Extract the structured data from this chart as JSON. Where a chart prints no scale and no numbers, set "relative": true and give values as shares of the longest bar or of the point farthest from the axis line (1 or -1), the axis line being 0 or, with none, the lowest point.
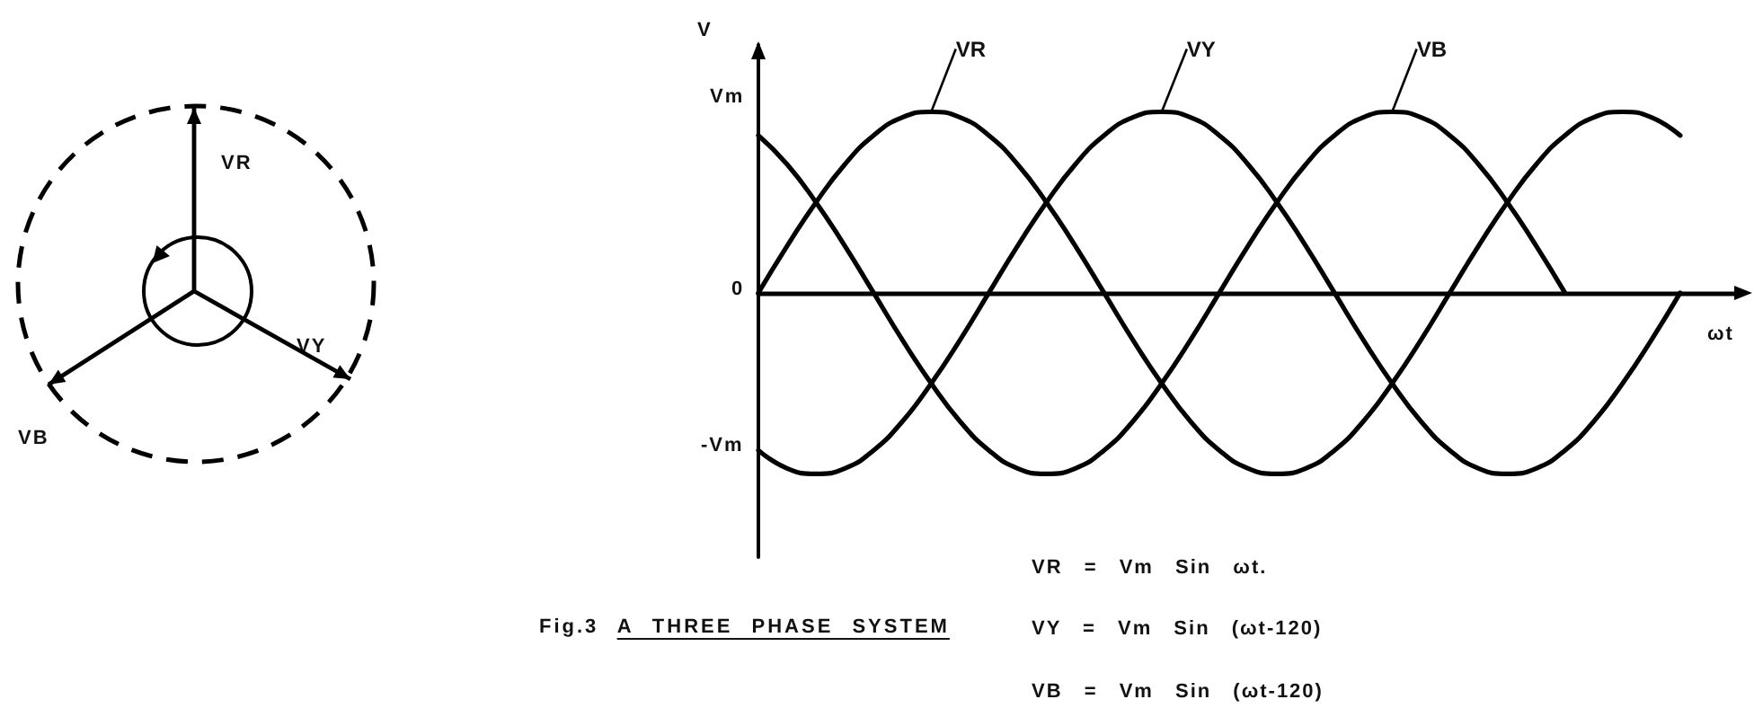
{
  "chart_data": {
    "type": "line",
    "title": "Fig.3 A THREE PHASE SYSTEM",
    "xlabel": "ωt",
    "ylabel": "V",
    "relative": true,
    "categories": [
      null,
      null,
      null,
      null,
      null,
      null,
      null,
      null,
      null,
      null,
      null,
      null,
      null,
      null,
      null,
      null,
      null,
      null,
      null,
      null,
      null,
      null,
      null,
      null,
      null,
      null,
      null,
      null,
      null,
      null,
      null,
      null,
      null,
      null,
      null
    ],
    "series": [
      {
        "name": "VR",
        "color": "#000000",
        "values": [
          0,
          0.26,
          0.5,
          0.71,
          0.87,
          0.97,
          1,
          0.97,
          0.87,
          0.71,
          0.5,
          0.26,
          0,
          -0.26,
          -0.5,
          -0.71,
          -0.87,
          -0.97,
          -1,
          -0.97,
          -0.87,
          -0.71,
          -0.5,
          -0.26,
          0,
          0.26,
          0.5,
          0.71,
          0.87,
          0.97,
          1,
          0.97,
          0.87,
          null,
          null
        ]
      },
      {
        "name": "VY",
        "color": "#000000",
        "values": [
          -0.87,
          -0.97,
          -1,
          -0.97,
          -0.87,
          -0.71,
          -0.5,
          -0.26,
          0,
          0.26,
          0.5,
          0.71,
          0.87,
          0.97,
          1,
          0.97,
          0.87,
          0.71,
          0.5,
          0.26,
          0,
          -0.26,
          -0.5,
          -0.71,
          -0.87,
          -0.97,
          -1,
          -0.97,
          -0.87,
          -0.71,
          -0.5,
          -0.26,
          0,
          null,
          null
        ]
      },
      {
        "name": "VB",
        "color": "#000000",
        "values": [
          0.87,
          0.71,
          0.5,
          0.26,
          0,
          -0.26,
          -0.5,
          -0.71,
          -0.87,
          -0.97,
          -1,
          -0.97,
          -0.87,
          -0.71,
          -0.5,
          -0.26,
          0,
          0.26,
          0.5,
          0.71,
          0.87,
          0.97,
          1,
          0.97,
          0.87,
          0.71,
          0.5,
          0.26,
          0,
          null,
          null,
          null,
          null,
          null,
          null
        ]
      }
    ],
    "annotations": [
      "Vm",
      "0",
      "-Vm",
      "VR = Vm Sin ωt.",
      "VY = Vm Sin (ωt-120)",
      "VB = Vm Sin (ωt-120)",
      "VR",
      "VY",
      "VB"
    ]
  }
}
